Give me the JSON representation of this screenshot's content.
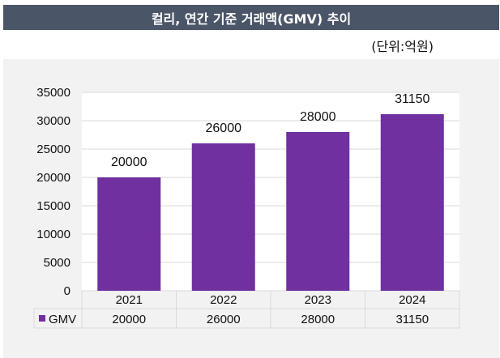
{
  "header": {
    "title": "컬리, 연간 기준 거래액(GMV) 추이",
    "unit": "(단위:억원)"
  },
  "colors": {
    "title_bg": "#4b5568",
    "bar": "#7030a0",
    "panel": "#f2f2f2"
  },
  "chart_data": {
    "type": "bar",
    "categories": [
      "2021",
      "2022",
      "2023",
      "2024"
    ],
    "series": [
      {
        "name": "GMV",
        "values": [
          20000,
          26000,
          28000,
          31150
        ]
      }
    ],
    "ylim": [
      0,
      35000
    ],
    "yticks": [
      0,
      5000,
      10000,
      15000,
      20000,
      25000,
      30000,
      35000
    ],
    "data_labels": true,
    "data_table": true,
    "grid": true
  }
}
